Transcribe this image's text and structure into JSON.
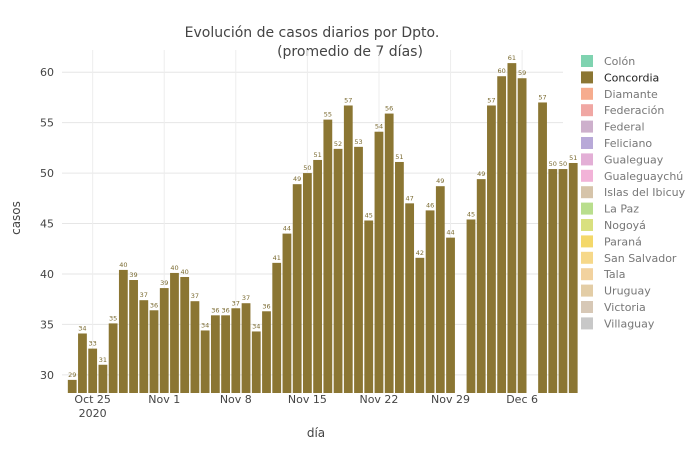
{
  "chart_data": {
    "type": "bar",
    "title_line1": "Evolución de casos diarios por Dpto.",
    "title_line2": "(promedio de 7 días)",
    "xlabel": "día",
    "ylabel": "casos",
    "ylim": [
      28.2,
      62.2
    ],
    "yticks": [
      30,
      35,
      40,
      45,
      50,
      55,
      60
    ],
    "x_start": "2020-10-22",
    "x_end": "2020-12-10",
    "xticks": [
      {
        "date": "2020-10-25",
        "label": "Oct 25",
        "sublabel": "2020"
      },
      {
        "date": "2020-11-01",
        "label": "Nov 1"
      },
      {
        "date": "2020-11-08",
        "label": "Nov 8"
      },
      {
        "date": "2020-11-15",
        "label": "Nov 15"
      },
      {
        "date": "2020-11-22",
        "label": "Nov 22"
      },
      {
        "date": "2020-11-29",
        "label": "Nov 29"
      },
      {
        "date": "2020-12-06",
        "label": "Dec 6"
      }
    ],
    "grid": true,
    "legend_position": "right",
    "series": [
      {
        "name": "Concordia",
        "color": "#8B7633",
        "points": [
          {
            "date": "2020-10-23",
            "value": 29.5,
            "label": "29"
          },
          {
            "date": "2020-10-24",
            "value": 34.1,
            "label": "34"
          },
          {
            "date": "2020-10-25",
            "value": 32.6,
            "label": "33"
          },
          {
            "date": "2020-10-26",
            "value": 31.0,
            "label": "31"
          },
          {
            "date": "2020-10-27",
            "value": 35.1,
            "label": "35"
          },
          {
            "date": "2020-10-28",
            "value": 40.4,
            "label": "40"
          },
          {
            "date": "2020-10-29",
            "value": 39.4,
            "label": "39"
          },
          {
            "date": "2020-10-30",
            "value": 37.4,
            "label": "37"
          },
          {
            "date": "2020-10-31",
            "value": 36.4,
            "label": "36"
          },
          {
            "date": "2020-11-01",
            "value": 38.6,
            "label": "39"
          },
          {
            "date": "2020-11-02",
            "value": 40.1,
            "label": "40"
          },
          {
            "date": "2020-11-03",
            "value": 39.7,
            "label": "40"
          },
          {
            "date": "2020-11-04",
            "value": 37.3,
            "label": "37"
          },
          {
            "date": "2020-11-05",
            "value": 34.4,
            "label": "34"
          },
          {
            "date": "2020-11-06",
            "value": 35.9,
            "label": "36"
          },
          {
            "date": "2020-11-07",
            "value": 35.9,
            "label": "36"
          },
          {
            "date": "2020-11-08",
            "value": 36.6,
            "label": "37"
          },
          {
            "date": "2020-11-09",
            "value": 37.1,
            "label": "37"
          },
          {
            "date": "2020-11-10",
            "value": 34.3,
            "label": "34"
          },
          {
            "date": "2020-11-11",
            "value": 36.3,
            "label": "36"
          },
          {
            "date": "2020-11-12",
            "value": 41.1,
            "label": "41"
          },
          {
            "date": "2020-11-13",
            "value": 44.0,
            "label": "44"
          },
          {
            "date": "2020-11-14",
            "value": 48.9,
            "label": "49"
          },
          {
            "date": "2020-11-15",
            "value": 50.0,
            "label": "50"
          },
          {
            "date": "2020-11-16",
            "value": 51.3,
            "label": "51"
          },
          {
            "date": "2020-11-17",
            "value": 55.3,
            "label": "55"
          },
          {
            "date": "2020-11-18",
            "value": 52.4,
            "label": "52"
          },
          {
            "date": "2020-11-19",
            "value": 56.7,
            "label": "57"
          },
          {
            "date": "2020-11-20",
            "value": 52.6,
            "label": "53"
          },
          {
            "date": "2020-11-21",
            "value": 45.3,
            "label": "45"
          },
          {
            "date": "2020-11-22",
            "value": 54.1,
            "label": "54"
          },
          {
            "date": "2020-11-23",
            "value": 55.9,
            "label": "56"
          },
          {
            "date": "2020-11-24",
            "value": 51.1,
            "label": "51"
          },
          {
            "date": "2020-11-25",
            "value": 47.0,
            "label": "47"
          },
          {
            "date": "2020-11-26",
            "value": 41.6,
            "label": "42"
          },
          {
            "date": "2020-11-27",
            "value": 46.3,
            "label": "46"
          },
          {
            "date": "2020-11-28",
            "value": 48.7,
            "label": "49"
          },
          {
            "date": "2020-11-29",
            "value": 43.6,
            "label": "44"
          },
          {
            "date": "2020-12-01",
            "value": 45.4,
            "label": "45"
          },
          {
            "date": "2020-12-02",
            "value": 49.4,
            "label": "49"
          },
          {
            "date": "2020-12-03",
            "value": 56.7,
            "label": "57"
          },
          {
            "date": "2020-12-04",
            "value": 59.6,
            "label": "60"
          },
          {
            "date": "2020-12-05",
            "value": 60.9,
            "label": "61"
          },
          {
            "date": "2020-12-06",
            "value": 59.4,
            "label": "59"
          },
          {
            "date": "2020-12-08",
            "value": 57.0,
            "label": "57"
          },
          {
            "date": "2020-12-09",
            "value": 50.4,
            "label": "50"
          },
          {
            "date": "2020-12-10",
            "value": 50.4,
            "label": "50"
          },
          {
            "date": "2020-12-11",
            "value": 51.0,
            "label": "51"
          }
        ]
      }
    ],
    "legend": [
      {
        "name": "Colón",
        "color": "#7fd3b0",
        "active": false
      },
      {
        "name": "Concordia",
        "color": "#8B7633",
        "active": true
      },
      {
        "name": "Diamante",
        "color": "#f6ac8e",
        "active": false
      },
      {
        "name": "Federación",
        "color": "#f0a7a3",
        "active": false
      },
      {
        "name": "Federal",
        "color": "#cdb0cc",
        "active": false
      },
      {
        "name": "Feliciano",
        "color": "#b8a9d8",
        "active": false
      },
      {
        "name": "Gualeguay",
        "color": "#e3afd6",
        "active": false
      },
      {
        "name": "Gualeguaychú",
        "color": "#f2b3d8",
        "active": false
      },
      {
        "name": "Islas del Ibicuy",
        "color": "#d6c4aa",
        "active": false
      },
      {
        "name": "La Paz",
        "color": "#b9de8d",
        "active": false
      },
      {
        "name": "Nogoyá",
        "color": "#d9e07f",
        "active": false
      },
      {
        "name": "Paraná",
        "color": "#f4d86a",
        "active": false
      },
      {
        "name": "San Salvador",
        "color": "#f6d88a",
        "active": false
      },
      {
        "name": "Tala",
        "color": "#f2d29f",
        "active": false
      },
      {
        "name": "Uruguay",
        "color": "#e3cda6",
        "active": false
      },
      {
        "name": "Victoria",
        "color": "#d7c8b6",
        "active": false
      },
      {
        "name": "Villaguay",
        "color": "#c8c8c8",
        "active": false
      }
    ]
  }
}
